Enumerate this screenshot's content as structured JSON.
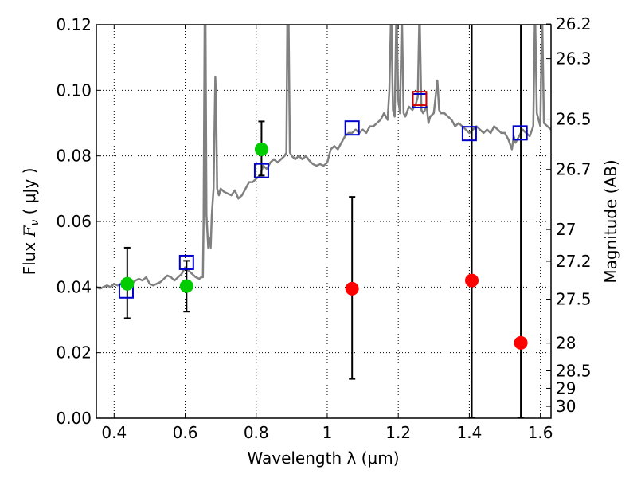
{
  "chart_data": {
    "type": "scatter",
    "xlabel": "Wavelength  λ (μm)",
    "ylabel_prefix": "Flux  ",
    "ylabel_symbol": "F",
    "ylabel_symbol_sub": "ν",
    "ylabel_suffix": "  ( μJy )",
    "y2label": "Magnitude (AB)",
    "xlim": [
      0.35,
      1.63
    ],
    "ylim": [
      0.0,
      0.12
    ],
    "grid": true,
    "x_ticks": [
      {
        "v": 0.4,
        "label": "0.4"
      },
      {
        "v": 0.6,
        "label": "0.6"
      },
      {
        "v": 0.8,
        "label": "0.8"
      },
      {
        "v": 1.0,
        "label": "1"
      },
      {
        "v": 1.2,
        "label": "1.2"
      },
      {
        "v": 1.4,
        "label": "1.4"
      },
      {
        "v": 1.6,
        "label": "1.6"
      }
    ],
    "y_ticks": [
      {
        "v": 0.0,
        "label": "0.00"
      },
      {
        "v": 0.02,
        "label": "0.02"
      },
      {
        "v": 0.04,
        "label": "0.04"
      },
      {
        "v": 0.06,
        "label": "0.06"
      },
      {
        "v": 0.08,
        "label": "0.08"
      },
      {
        "v": 0.1,
        "label": "0.10"
      },
      {
        "v": 0.12,
        "label": "0.12"
      }
    ],
    "y2_ticks": [
      {
        "mag": 26.2,
        "label": "26.2"
      },
      {
        "mag": 26.3,
        "label": "26.3"
      },
      {
        "mag": 26.5,
        "label": "26.5"
      },
      {
        "mag": 26.7,
        "label": "26.7"
      },
      {
        "mag": 27.0,
        "label": "27"
      },
      {
        "mag": 27.2,
        "label": "27.2"
      },
      {
        "mag": 27.5,
        "label": "27.5"
      },
      {
        "mag": 28.0,
        "label": "28"
      },
      {
        "mag": 28.5,
        "label": "28.5"
      },
      {
        "mag": 29.0,
        "label": "29"
      },
      {
        "mag": 30.0,
        "label": "30"
      }
    ],
    "series": [
      {
        "kind": "line",
        "color": "#808080",
        "points": [
          [
            0.35,
            0.04
          ],
          [
            0.36,
            0.0395
          ],
          [
            0.37,
            0.04
          ],
          [
            0.38,
            0.0405
          ],
          [
            0.39,
            0.04
          ],
          [
            0.4,
            0.041
          ],
          [
            0.41,
            0.0405
          ],
          [
            0.42,
            0.041
          ],
          [
            0.43,
            0.0415
          ],
          [
            0.44,
            0.042
          ],
          [
            0.45,
            0.041
          ],
          [
            0.46,
            0.042
          ],
          [
            0.47,
            0.0425
          ],
          [
            0.48,
            0.042
          ],
          [
            0.49,
            0.043
          ],
          [
            0.5,
            0.041
          ],
          [
            0.51,
            0.0405
          ],
          [
            0.52,
            0.041
          ],
          [
            0.53,
            0.0415
          ],
          [
            0.54,
            0.0425
          ],
          [
            0.55,
            0.0435
          ],
          [
            0.56,
            0.043
          ],
          [
            0.57,
            0.042
          ],
          [
            0.58,
            0.043
          ],
          [
            0.59,
            0.044
          ],
          [
            0.6,
            0.046
          ],
          [
            0.61,
            0.045
          ],
          [
            0.62,
            0.044
          ],
          [
            0.63,
            0.043
          ],
          [
            0.64,
            0.0425
          ],
          [
            0.645,
            0.043
          ],
          [
            0.65,
            0.043
          ],
          [
            0.652,
            0.06
          ],
          [
            0.655,
            0.125
          ],
          [
            0.657,
            0.125
          ],
          [
            0.66,
            0.062
          ],
          [
            0.665,
            0.052
          ],
          [
            0.67,
            0.055
          ],
          [
            0.672,
            0.052
          ],
          [
            0.675,
            0.062
          ],
          [
            0.68,
            0.07
          ],
          [
            0.685,
            0.104
          ],
          [
            0.687,
            0.098
          ],
          [
            0.69,
            0.07
          ],
          [
            0.695,
            0.068
          ],
          [
            0.7,
            0.07
          ],
          [
            0.71,
            0.069
          ],
          [
            0.72,
            0.0685
          ],
          [
            0.73,
            0.068
          ],
          [
            0.74,
            0.0695
          ],
          [
            0.75,
            0.067
          ],
          [
            0.76,
            0.068
          ],
          [
            0.77,
            0.07
          ],
          [
            0.78,
            0.072
          ],
          [
            0.79,
            0.072
          ],
          [
            0.8,
            0.073
          ],
          [
            0.81,
            0.074
          ],
          [
            0.82,
            0.077
          ],
          [
            0.83,
            0.076
          ],
          [
            0.84,
            0.078
          ],
          [
            0.85,
            0.079
          ],
          [
            0.86,
            0.078
          ],
          [
            0.87,
            0.079
          ],
          [
            0.88,
            0.08
          ],
          [
            0.885,
            0.081
          ],
          [
            0.888,
            0.125
          ],
          [
            0.891,
            0.125
          ],
          [
            0.895,
            0.081
          ],
          [
            0.9,
            0.08
          ],
          [
            0.91,
            0.079
          ],
          [
            0.92,
            0.08
          ],
          [
            0.93,
            0.079
          ],
          [
            0.94,
            0.08
          ],
          [
            0.95,
            0.0785
          ],
          [
            0.96,
            0.0775
          ],
          [
            0.97,
            0.077
          ],
          [
            0.98,
            0.0775
          ],
          [
            0.99,
            0.077
          ],
          [
            1.0,
            0.078
          ],
          [
            1.01,
            0.082
          ],
          [
            1.02,
            0.083
          ],
          [
            1.03,
            0.082
          ],
          [
            1.04,
            0.084
          ],
          [
            1.05,
            0.086
          ],
          [
            1.06,
            0.087
          ],
          [
            1.07,
            0.087
          ],
          [
            1.08,
            0.088
          ],
          [
            1.09,
            0.087
          ],
          [
            1.1,
            0.088
          ],
          [
            1.11,
            0.087
          ],
          [
            1.12,
            0.089
          ],
          [
            1.13,
            0.089
          ],
          [
            1.14,
            0.09
          ],
          [
            1.15,
            0.091
          ],
          [
            1.16,
            0.093
          ],
          [
            1.17,
            0.091
          ],
          [
            1.175,
            0.1
          ],
          [
            1.18,
            0.125
          ],
          [
            1.185,
            0.094
          ],
          [
            1.19,
            0.092
          ],
          [
            1.195,
            0.125
          ],
          [
            1.2,
            0.097
          ],
          [
            1.205,
            0.093
          ],
          [
            1.21,
            0.125
          ],
          [
            1.215,
            0.093
          ],
          [
            1.22,
            0.092
          ],
          [
            1.23,
            0.095
          ],
          [
            1.24,
            0.094
          ],
          [
            1.25,
            0.096
          ],
          [
            1.255,
            0.098
          ],
          [
            1.26,
            0.125
          ],
          [
            1.265,
            0.094
          ],
          [
            1.27,
            0.093
          ],
          [
            1.28,
            0.095
          ],
          [
            1.285,
            0.09
          ],
          [
            1.29,
            0.092
          ],
          [
            1.3,
            0.093
          ],
          [
            1.31,
            0.103
          ],
          [
            1.315,
            0.094
          ],
          [
            1.32,
            0.093
          ],
          [
            1.33,
            0.093
          ],
          [
            1.34,
            0.092
          ],
          [
            1.35,
            0.091
          ],
          [
            1.36,
            0.089
          ],
          [
            1.37,
            0.09
          ],
          [
            1.38,
            0.089
          ],
          [
            1.39,
            0.088
          ],
          [
            1.4,
            0.087
          ],
          [
            1.41,
            0.088
          ],
          [
            1.42,
            0.089
          ],
          [
            1.43,
            0.088
          ],
          [
            1.44,
            0.087
          ],
          [
            1.45,
            0.088
          ],
          [
            1.46,
            0.087
          ],
          [
            1.47,
            0.089
          ],
          [
            1.48,
            0.088
          ],
          [
            1.49,
            0.087
          ],
          [
            1.5,
            0.087
          ],
          [
            1.51,
            0.085
          ],
          [
            1.52,
            0.082
          ],
          [
            1.525,
            0.086
          ],
          [
            1.53,
            0.084
          ],
          [
            1.54,
            0.086
          ],
          [
            1.55,
            0.088
          ],
          [
            1.56,
            0.087
          ],
          [
            1.57,
            0.086
          ],
          [
            1.58,
            0.089
          ],
          [
            1.585,
            0.125
          ],
          [
            1.59,
            0.093
          ],
          [
            1.6,
            0.089
          ],
          [
            1.605,
            0.125
          ],
          [
            1.61,
            0.09
          ],
          [
            1.62,
            0.089
          ],
          [
            1.63,
            0.088
          ]
        ]
      },
      {
        "kind": "errorbar",
        "color": "#000000",
        "bars": [
          {
            "x": 0.437,
            "low": 0.0305,
            "high": 0.052
          },
          {
            "x": 0.604,
            "low": 0.0325,
            "high": 0.048
          },
          {
            "x": 0.815,
            "low": 0.074,
            "high": 0.0905
          },
          {
            "x": 1.07,
            "low": 0.012,
            "high": 0.0675
          },
          {
            "x": 1.407,
            "low": 0.0,
            "high": 0.12
          },
          {
            "x": 1.545,
            "low": 0.0,
            "high": 0.12
          }
        ]
      },
      {
        "kind": "square",
        "color": "#0000cc",
        "points": [
          {
            "x": 0.434,
            "y": 0.0388
          },
          {
            "x": 0.604,
            "y": 0.0475
          },
          {
            "x": 0.815,
            "y": 0.0755
          },
          {
            "x": 1.07,
            "y": 0.0885
          },
          {
            "x": 1.26,
            "y": 0.0968
          },
          {
            "x": 1.4,
            "y": 0.0868
          },
          {
            "x": 1.543,
            "y": 0.087
          }
        ]
      },
      {
        "kind": "square",
        "color": "#cc0000",
        "points": [
          {
            "x": 1.26,
            "y": 0.0975
          }
        ]
      },
      {
        "kind": "circle",
        "color": "#00cc00",
        "points": [
          {
            "x": 0.437,
            "y": 0.041
          },
          {
            "x": 0.604,
            "y": 0.0403
          },
          {
            "x": 0.815,
            "y": 0.082
          }
        ]
      },
      {
        "kind": "circle",
        "color": "#ff0000",
        "points": [
          {
            "x": 1.07,
            "y": 0.0395
          },
          {
            "x": 1.407,
            "y": 0.042
          },
          {
            "x": 1.545,
            "y": 0.023
          }
        ]
      }
    ]
  }
}
